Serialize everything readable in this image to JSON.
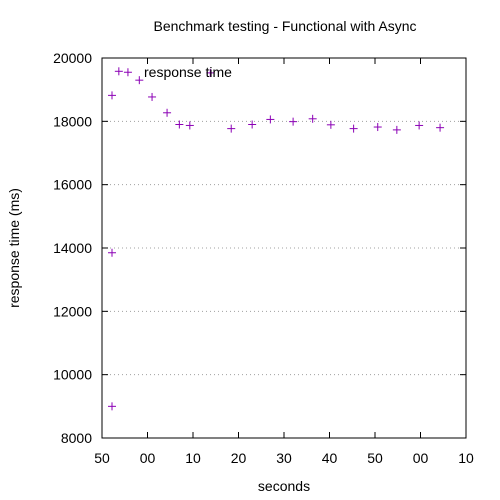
{
  "chart_data": {
    "type": "scatter",
    "title": "Benchmark testing - Functional with Async",
    "xlabel": "seconds",
    "ylabel": "response time (ms)",
    "x_tick_labels": [
      "50",
      "00",
      "10",
      "20",
      "30",
      "40",
      "50",
      "00",
      "10"
    ],
    "y_ticks": [
      8000,
      10000,
      12000,
      14000,
      16000,
      18000,
      20000
    ],
    "y_tick_labels": [
      "8000",
      "10000",
      "12000",
      "14000",
      "16000",
      "18000",
      "20000"
    ],
    "xlim": [
      0,
      8
    ],
    "ylim": [
      8000,
      20000
    ],
    "grid": "horizontal dotted",
    "legend_placement": "top-left",
    "series": [
      {
        "name": "response time",
        "color": "#8b00b5",
        "marker": "plus",
        "x": [
          0.22,
          0.22,
          0.22,
          0.37,
          0.57,
          0.82,
          1.1,
          1.43,
          1.7,
          1.93,
          2.38,
          2.84,
          3.3,
          3.7,
          4.2,
          4.63,
          5.03,
          5.53,
          6.06,
          6.48,
          6.97,
          7.43
        ],
        "y": [
          9000,
          13850,
          18820,
          19580,
          19550,
          19300,
          18770,
          18270,
          17900,
          17870,
          19530,
          17770,
          17900,
          18060,
          17990,
          18080,
          17890,
          17770,
          17820,
          17730,
          17870,
          17800
        ]
      }
    ]
  }
}
